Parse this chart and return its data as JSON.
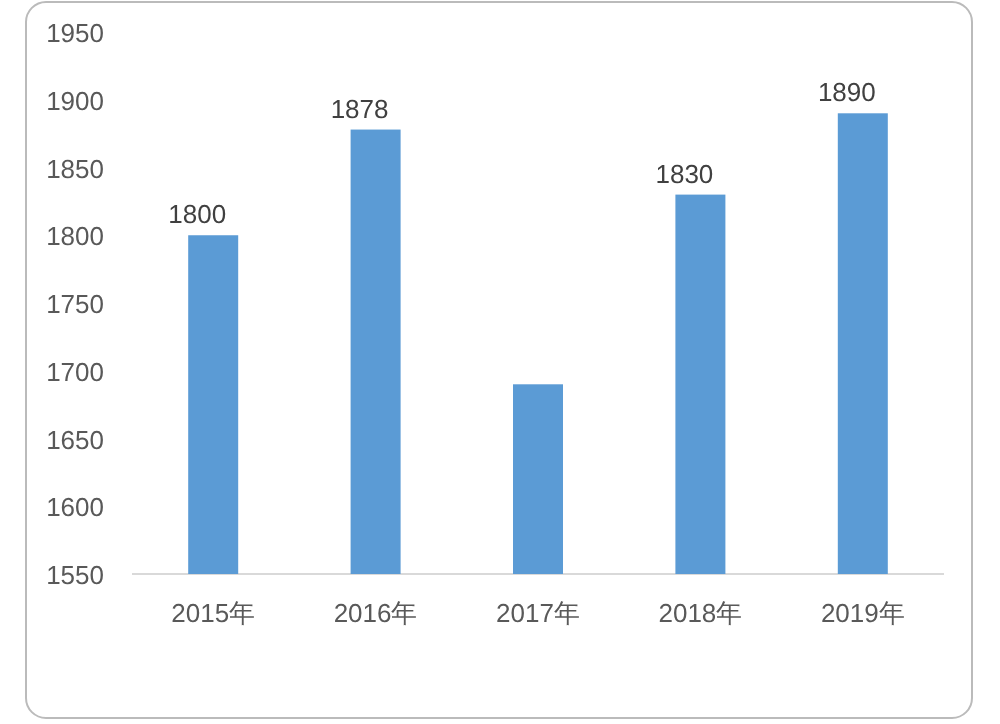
{
  "chart_data": {
    "type": "bar",
    "categories": [
      "2015年",
      "2016年",
      "2017年",
      "2018年",
      "2019年"
    ],
    "values": [
      1800,
      1878,
      1690,
      1830,
      1890
    ],
    "value_labels": [
      "1800",
      "1878",
      null,
      "1830",
      "1890"
    ],
    "color": "#5b9bd5",
    "ylim": [
      1550,
      1950
    ],
    "yticks": [
      1550,
      1600,
      1650,
      1700,
      1750,
      1800,
      1850,
      1900,
      1950
    ],
    "grid": false
  }
}
